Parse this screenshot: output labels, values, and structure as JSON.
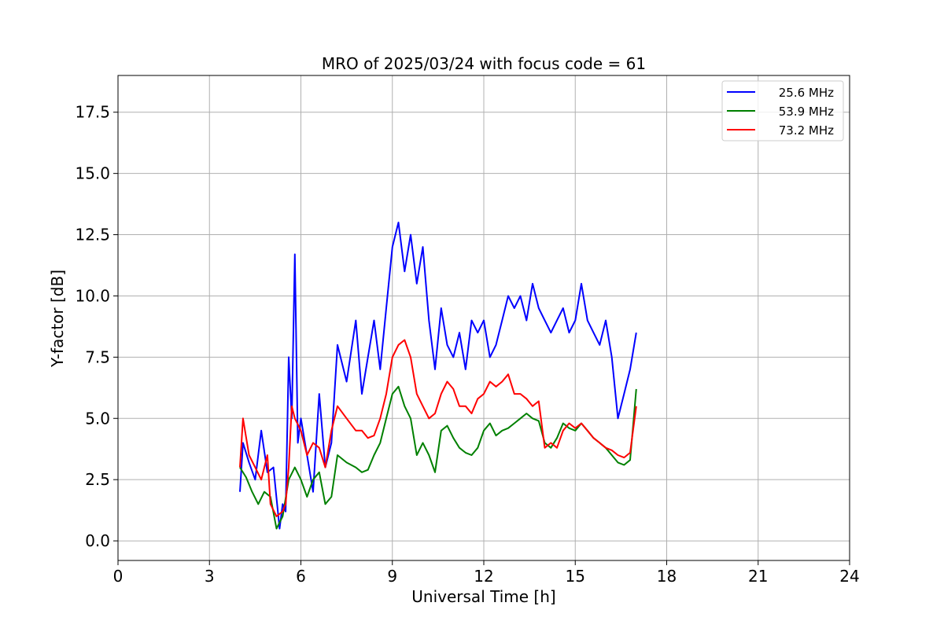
{
  "chart_data": {
    "type": "line",
    "title": "MRO of 2025/03/24 with focus code = 61",
    "xlabel": "Universal Time [h]",
    "ylabel": "Y-factor [dB]",
    "xlim": [
      0,
      24
    ],
    "ylim": [
      -0.8,
      19.0
    ],
    "xticks": [
      0,
      3,
      6,
      9,
      12,
      15,
      18,
      21,
      24
    ],
    "xtick_labels": [
      "0",
      "3",
      "6",
      "9",
      "12",
      "15",
      "18",
      "21",
      "24"
    ],
    "yticks": [
      0,
      2.5,
      5,
      7.5,
      10,
      12.5,
      15,
      17.5
    ],
    "ytick_labels": [
      "0.0",
      "2.5",
      "5.0",
      "7.5",
      "10.0",
      "12.5",
      "15.0",
      "17.5"
    ],
    "grid": true,
    "legend_position": "top-right",
    "series": [
      {
        "name": "25.6 MHz",
        "color": "#0000ff",
        "x": [
          4.0,
          4.1,
          4.3,
          4.5,
          4.7,
          4.9,
          5.1,
          5.3,
          5.4,
          5.5,
          5.6,
          5.7,
          5.8,
          5.9,
          6.0,
          6.2,
          6.4,
          6.6,
          6.8,
          7.0,
          7.2,
          7.5,
          7.8,
          8.0,
          8.2,
          8.4,
          8.6,
          8.8,
          9.0,
          9.2,
          9.4,
          9.6,
          9.8,
          10.0,
          10.2,
          10.4,
          10.6,
          10.8,
          11.0,
          11.2,
          11.4,
          11.6,
          11.8,
          12.0,
          12.2,
          12.4,
          12.6,
          12.8,
          13.0,
          13.2,
          13.4,
          13.6,
          13.8,
          14.0,
          14.2,
          14.4,
          14.6,
          14.8,
          15.0,
          15.2,
          15.4,
          15.6,
          15.8,
          16.0,
          16.2,
          16.4,
          16.6,
          16.8,
          17.0
        ],
        "y": [
          2.0,
          4.0,
          3.2,
          2.5,
          4.5,
          2.8,
          3.0,
          0.5,
          1.5,
          1.2,
          7.5,
          5.0,
          11.7,
          4.0,
          5.0,
          3.5,
          2.0,
          6.0,
          3.0,
          4.0,
          8.0,
          6.5,
          9.0,
          6.0,
          7.5,
          9.0,
          7.0,
          9.5,
          12.0,
          13.0,
          11.0,
          12.5,
          10.5,
          12.0,
          9.0,
          7.0,
          9.5,
          8.0,
          7.5,
          8.5,
          7.0,
          9.0,
          8.5,
          9.0,
          7.5,
          8.0,
          9.0,
          10.0,
          9.5,
          10.0,
          9.0,
          10.5,
          9.5,
          9.0,
          8.5,
          9.0,
          9.5,
          8.5,
          9.0,
          10.5,
          9.0,
          8.5,
          8.0,
          9.0,
          7.5,
          5.0,
          6.0,
          7.0,
          8.5
        ]
      },
      {
        "name": "53.9 MHz",
        "color": "#008000",
        "x": [
          4.0,
          4.2,
          4.4,
          4.6,
          4.8,
          5.0,
          5.2,
          5.4,
          5.6,
          5.8,
          6.0,
          6.2,
          6.4,
          6.6,
          6.8,
          7.0,
          7.2,
          7.5,
          7.8,
          8.0,
          8.2,
          8.4,
          8.6,
          8.8,
          9.0,
          9.2,
          9.4,
          9.6,
          9.8,
          10.0,
          10.2,
          10.4,
          10.6,
          10.8,
          11.0,
          11.2,
          11.4,
          11.6,
          11.8,
          12.0,
          12.2,
          12.4,
          12.6,
          12.8,
          13.0,
          13.2,
          13.4,
          13.6,
          13.8,
          14.0,
          14.2,
          14.4,
          14.6,
          14.8,
          15.0,
          15.2,
          15.4,
          15.6,
          15.8,
          16.0,
          16.2,
          16.4,
          16.6,
          16.8,
          17.0
        ],
        "y": [
          3.0,
          2.6,
          2.0,
          1.5,
          2.0,
          1.8,
          0.5,
          1.0,
          2.5,
          3.0,
          2.5,
          1.8,
          2.5,
          2.8,
          1.5,
          1.8,
          3.5,
          3.2,
          3.0,
          2.8,
          2.9,
          3.5,
          4.0,
          5.0,
          6.0,
          6.3,
          5.5,
          5.0,
          3.5,
          4.0,
          3.5,
          2.8,
          4.5,
          4.7,
          4.2,
          3.8,
          3.6,
          3.5,
          3.8,
          4.5,
          4.8,
          4.3,
          4.5,
          4.6,
          4.8,
          5.0,
          5.2,
          5.0,
          4.9,
          4.0,
          3.8,
          4.2,
          4.8,
          4.6,
          4.5,
          4.8,
          4.5,
          4.2,
          4.0,
          3.8,
          3.5,
          3.2,
          3.1,
          3.3,
          6.2
        ]
      },
      {
        "name": "73.2 MHz",
        "color": "#ff0000",
        "x": [
          4.0,
          4.1,
          4.3,
          4.5,
          4.7,
          4.9,
          5.0,
          5.2,
          5.4,
          5.5,
          5.6,
          5.7,
          5.8,
          6.0,
          6.2,
          6.4,
          6.6,
          6.8,
          7.0,
          7.2,
          7.5,
          7.8,
          8.0,
          8.2,
          8.4,
          8.6,
          8.8,
          9.0,
          9.2,
          9.4,
          9.6,
          9.8,
          10.0,
          10.2,
          10.4,
          10.6,
          10.8,
          11.0,
          11.2,
          11.4,
          11.6,
          11.8,
          12.0,
          12.2,
          12.4,
          12.6,
          12.8,
          13.0,
          13.2,
          13.4,
          13.6,
          13.8,
          14.0,
          14.2,
          14.4,
          14.6,
          14.8,
          15.0,
          15.2,
          15.4,
          15.6,
          15.8,
          16.0,
          16.2,
          16.4,
          16.6,
          16.8,
          17.0
        ],
        "y": [
          3.0,
          5.0,
          3.5,
          3.0,
          2.5,
          3.5,
          1.5,
          1.0,
          1.2,
          1.5,
          3.0,
          5.5,
          5.0,
          4.5,
          3.5,
          4.0,
          3.8,
          3.0,
          4.5,
          5.5,
          5.0,
          4.5,
          4.5,
          4.2,
          4.3,
          5.0,
          6.0,
          7.5,
          8.0,
          8.2,
          7.5,
          6.0,
          5.5,
          5.0,
          5.2,
          6.0,
          6.5,
          6.2,
          5.5,
          5.5,
          5.2,
          5.8,
          6.0,
          6.5,
          6.3,
          6.5,
          6.8,
          6.0,
          6.0,
          5.8,
          5.5,
          5.7,
          3.8,
          4.0,
          3.8,
          4.5,
          4.8,
          4.6,
          4.8,
          4.5,
          4.2,
          4.0,
          3.8,
          3.7,
          3.5,
          3.4,
          3.6,
          5.5
        ]
      }
    ]
  }
}
